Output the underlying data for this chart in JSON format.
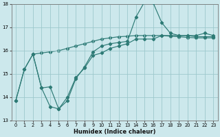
{
  "xlabel": "Humidex (Indice chaleur)",
  "bg_color": "#cce8ec",
  "grid_color": "#9dc8cc",
  "line_color": "#2d7a75",
  "ylim": [
    13,
    18
  ],
  "xlim": [
    -0.5,
    23.5
  ],
  "yticks": [
    13,
    14,
    15,
    16,
    17,
    18
  ],
  "xticks": [
    0,
    1,
    2,
    3,
    4,
    5,
    6,
    7,
    8,
    9,
    10,
    11,
    12,
    13,
    14,
    15,
    16,
    17,
    18,
    19,
    20,
    21,
    22,
    23
  ],
  "line1_x": [
    0,
    1,
    2,
    3,
    4,
    5,
    6,
    7,
    8,
    9,
    10,
    11,
    12,
    13,
    14,
    15,
    16,
    17,
    18,
    19,
    20,
    21,
    22,
    23
  ],
  "line1_y": [
    13.85,
    15.2,
    15.85,
    14.4,
    13.6,
    13.5,
    13.85,
    14.8,
    15.3,
    15.95,
    16.2,
    16.3,
    16.35,
    16.4,
    17.45,
    18.1,
    18.05,
    17.2,
    16.75,
    16.65,
    16.65,
    16.65,
    16.75,
    16.65
  ],
  "line2_x": [
    0,
    1,
    2,
    3,
    4,
    5,
    6,
    7,
    8,
    9,
    10,
    11,
    12,
    13,
    14,
    15,
    16,
    17,
    18,
    19,
    20,
    21,
    22,
    23
  ],
  "line2_y": [
    13.85,
    15.2,
    15.85,
    14.4,
    14.45,
    13.5,
    14.0,
    14.85,
    15.25,
    15.8,
    15.9,
    16.1,
    16.2,
    16.3,
    16.5,
    16.5,
    16.5,
    16.65,
    16.65,
    16.65,
    16.65,
    16.6,
    16.6,
    16.6
  ],
  "line3_x": [
    2,
    3,
    4,
    5,
    6,
    7,
    8,
    9,
    10,
    11,
    12,
    13,
    14,
    15,
    16,
    17,
    18,
    19,
    20,
    21,
    22,
    23
  ],
  "line3_y": [
    15.85,
    15.9,
    15.95,
    16.0,
    16.1,
    16.2,
    16.3,
    16.4,
    16.5,
    16.55,
    16.6,
    16.62,
    16.65,
    16.65,
    16.65,
    16.65,
    16.62,
    16.6,
    16.57,
    16.55,
    16.55,
    16.55
  ]
}
